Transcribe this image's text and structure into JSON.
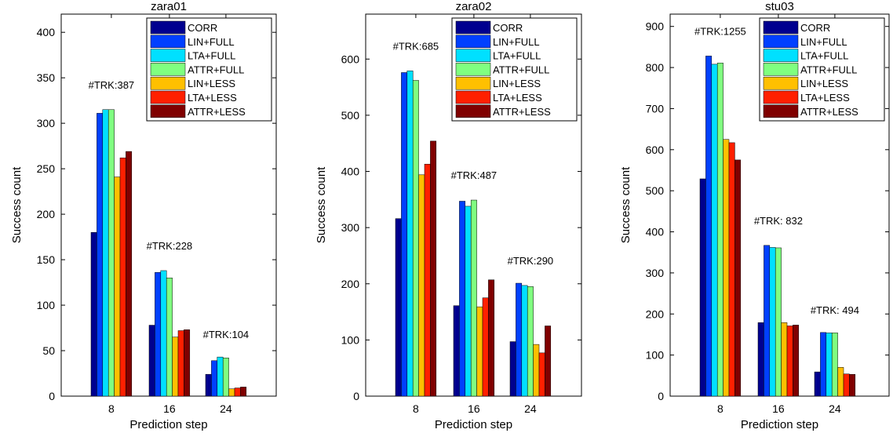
{
  "chart_data": [
    {
      "type": "bar",
      "title": "zara01",
      "xlabel": "Prediction step",
      "ylabel": "Success count",
      "categories": [
        "8",
        "16",
        "24"
      ],
      "ylim": [
        0,
        420
      ],
      "yticks": [
        0,
        50,
        100,
        150,
        200,
        250,
        300,
        350,
        400
      ],
      "grid": false,
      "legend_position": "top-right",
      "annotations": [
        "#TRK:387",
        "#TRK:228",
        "#TRK:104"
      ],
      "series": [
        {
          "name": "CORR",
          "values": [
            180,
            78,
            24
          ]
        },
        {
          "name": "LIN+FULL",
          "values": [
            311,
            136,
            39
          ]
        },
        {
          "name": "LTA+FULL",
          "values": [
            315,
            138,
            43
          ]
        },
        {
          "name": "ATTR+FULL",
          "values": [
            315,
            130,
            42
          ]
        },
        {
          "name": "LIN+LESS",
          "values": [
            241,
            65,
            8
          ]
        },
        {
          "name": "LTA+LESS",
          "values": [
            262,
            72,
            9
          ]
        },
        {
          "name": "ATTR+LESS",
          "values": [
            269,
            73,
            10
          ]
        }
      ]
    },
    {
      "type": "bar",
      "title": "zara02",
      "xlabel": "Prediction step",
      "ylabel": "Success count",
      "categories": [
        "8",
        "16",
        "24"
      ],
      "ylim": [
        0,
        680
      ],
      "yticks": [
        0,
        100,
        200,
        300,
        400,
        500,
        600
      ],
      "grid": false,
      "legend_position": "top-right",
      "annotations": [
        "#TRK:685",
        "#TRK:487",
        "#TRK:290"
      ],
      "series": [
        {
          "name": "CORR",
          "values": [
            316,
            161,
            97
          ]
        },
        {
          "name": "LIN+FULL",
          "values": [
            576,
            347,
            201
          ]
        },
        {
          "name": "LTA+FULL",
          "values": [
            579,
            338,
            197
          ]
        },
        {
          "name": "ATTR+FULL",
          "values": [
            562,
            349,
            195
          ]
        },
        {
          "name": "LIN+LESS",
          "values": [
            394,
            159,
            92
          ]
        },
        {
          "name": "LTA+LESS",
          "values": [
            413,
            175,
            77
          ]
        },
        {
          "name": "ATTR+LESS",
          "values": [
            454,
            207,
            125
          ]
        }
      ]
    },
    {
      "type": "bar",
      "title": "stu03",
      "xlabel": "Prediction step",
      "ylabel": "Success count",
      "categories": [
        "8",
        "16",
        "24"
      ],
      "ylim": [
        0,
        930
      ],
      "yticks": [
        0,
        100,
        200,
        300,
        400,
        500,
        600,
        700,
        800,
        900
      ],
      "grid": false,
      "legend_position": "top-right",
      "annotations": [
        "#TRK:1255",
        "#TRK: 832",
        "#TRK: 494"
      ],
      "series": [
        {
          "name": "CORR",
          "values": [
            529,
            179,
            59
          ]
        },
        {
          "name": "LIN+FULL",
          "values": [
            828,
            367,
            155
          ]
        },
        {
          "name": "LTA+FULL",
          "values": [
            808,
            362,
            154
          ]
        },
        {
          "name": "ATTR+FULL",
          "values": [
            811,
            361,
            154
          ]
        },
        {
          "name": "LIN+LESS",
          "values": [
            625,
            179,
            70
          ]
        },
        {
          "name": "LTA+LESS",
          "values": [
            617,
            171,
            54
          ]
        },
        {
          "name": "ATTR+LESS",
          "values": [
            575,
            173,
            53
          ]
        }
      ]
    }
  ],
  "series_colors": [
    "#00008f",
    "#0040ff",
    "#00e0ff",
    "#80ff80",
    "#ffc000",
    "#ff2000",
    "#800000"
  ]
}
